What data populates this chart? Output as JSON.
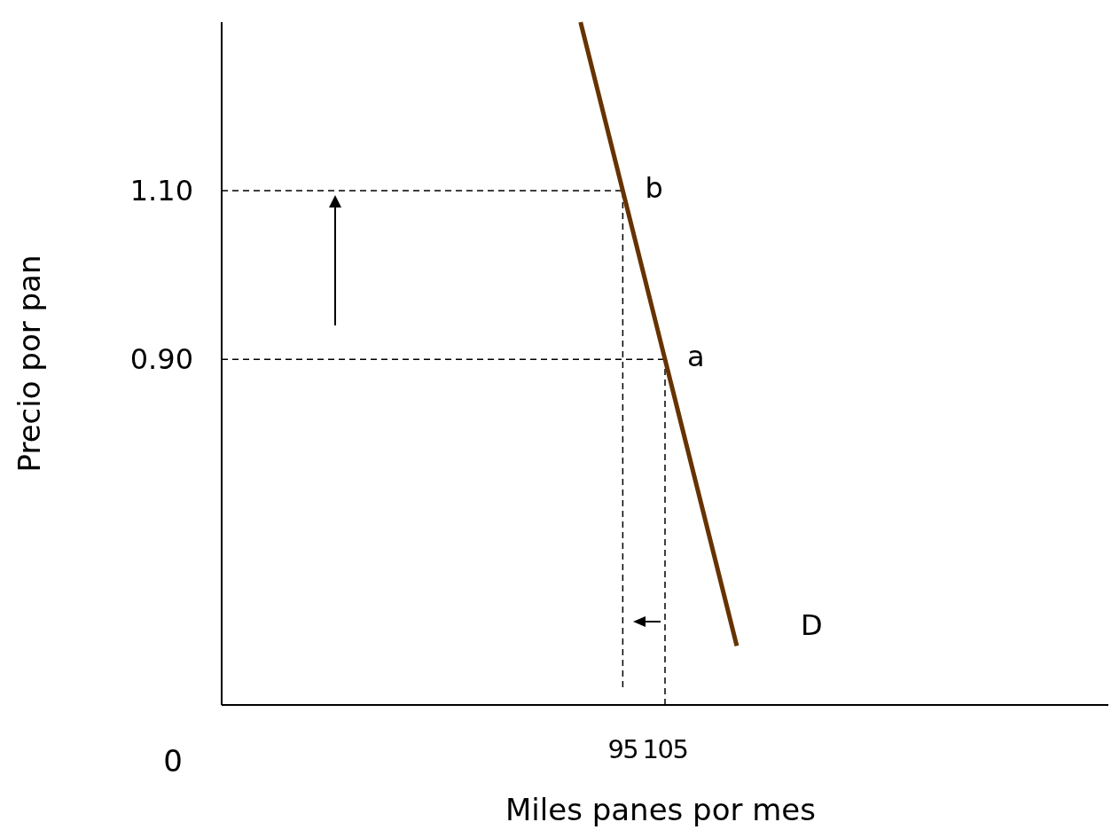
{
  "chart_data": {
    "type": "line",
    "xlabel": "Miles panes por mes",
    "ylabel": "Precio por pan",
    "xlim": [
      0,
      210
    ],
    "ylim": [
      0.49,
      1.3
    ],
    "xticks": [
      95,
      105
    ],
    "yticks": [
      {
        "value": 1.1,
        "label": "1.10"
      },
      {
        "value": 0.9,
        "label": "0.90"
      }
    ],
    "series": [
      {
        "color": "#663300",
        "x": [
          85,
          95,
          105,
          122
        ],
        "values": [
          1.3,
          1.1,
          0.9,
          0.56
        ]
      }
    ],
    "ref_lines": [
      {
        "axis": "y",
        "value": 1.1,
        "line_style": "dashed",
        "color": "#000000"
      },
      {
        "axis": "y",
        "value": 0.9,
        "line_style": "dashed",
        "color": "#000000"
      },
      {
        "axis": "x",
        "value": 95,
        "line_style": "dashed",
        "color": "#000000"
      },
      {
        "axis": "x",
        "value": 105,
        "line_style": "dashed",
        "color": "#000000"
      }
    ],
    "annotations": [
      {
        "text": "b",
        "x": 95,
        "y": 1.1
      },
      {
        "text": "a",
        "x": 105,
        "y": 0.9
      },
      "D",
      "0"
    ]
  }
}
